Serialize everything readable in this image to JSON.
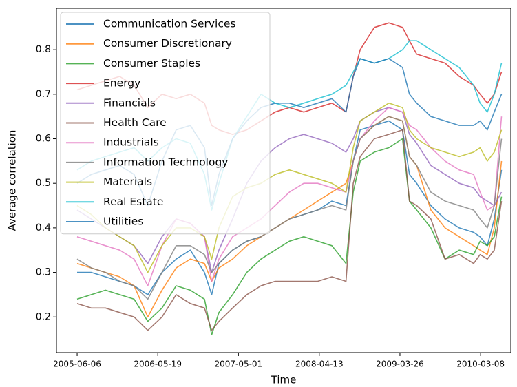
{
  "chart_data": {
    "type": "line",
    "xlabel": "Time",
    "ylabel": "Average correlation",
    "x": [
      "2005-06-06",
      "2005-08-06",
      "2005-10-06",
      "2005-12-06",
      "2006-02-06",
      "2006-04-06",
      "2006-06-06",
      "2006-08-06",
      "2006-10-06",
      "2006-12-06",
      "2007-01-06",
      "2007-02-06",
      "2007-04-06",
      "2007-06-06",
      "2007-08-06",
      "2007-10-06",
      "2007-12-06",
      "2008-02-06",
      "2008-04-06",
      "2008-06-06",
      "2008-08-06",
      "2008-09-06",
      "2008-10-06",
      "2008-12-06",
      "2009-02-06",
      "2009-04-06",
      "2009-05-06",
      "2009-06-06",
      "2009-08-06",
      "2009-10-06",
      "2009-12-06",
      "2010-02-06",
      "2010-03-06",
      "2010-04-06",
      "2010-05-06",
      "2010-06-06"
    ],
    "series": [
      {
        "name": "Communication Services",
        "color": "#1f77b4",
        "values": [
          0.3,
          0.3,
          0.29,
          0.28,
          0.27,
          0.25,
          0.3,
          0.33,
          0.35,
          0.3,
          0.25,
          0.32,
          0.35,
          0.37,
          0.38,
          0.4,
          0.42,
          0.43,
          0.44,
          0.46,
          0.45,
          0.55,
          0.62,
          0.63,
          0.64,
          0.62,
          0.52,
          0.5,
          0.45,
          0.42,
          0.4,
          0.39,
          0.38,
          0.36,
          0.42,
          0.53
        ]
      },
      {
        "name": "Consumer Discretionary",
        "color": "#ff7f0e",
        "values": [
          0.32,
          0.31,
          0.3,
          0.29,
          0.27,
          0.2,
          0.26,
          0.31,
          0.33,
          0.32,
          0.28,
          0.31,
          0.33,
          0.36,
          0.38,
          0.4,
          0.42,
          0.44,
          0.46,
          0.48,
          0.5,
          0.55,
          0.6,
          0.63,
          0.65,
          0.64,
          0.56,
          0.54,
          0.44,
          0.4,
          0.38,
          0.36,
          0.35,
          0.34,
          0.4,
          0.55
        ]
      },
      {
        "name": "Consumer Staples",
        "color": "#2ca02c",
        "values": [
          0.24,
          0.25,
          0.26,
          0.25,
          0.24,
          0.19,
          0.22,
          0.27,
          0.26,
          0.24,
          0.16,
          0.21,
          0.25,
          0.3,
          0.33,
          0.35,
          0.37,
          0.38,
          0.37,
          0.36,
          0.32,
          0.48,
          0.55,
          0.57,
          0.58,
          0.6,
          0.46,
          0.44,
          0.4,
          0.33,
          0.35,
          0.34,
          0.37,
          0.36,
          0.38,
          0.47
        ]
      },
      {
        "name": "Energy",
        "color": "#d62728",
        "values": [
          0.71,
          0.72,
          0.73,
          0.74,
          0.72,
          0.67,
          0.7,
          0.69,
          0.7,
          0.68,
          0.63,
          0.62,
          0.61,
          0.62,
          0.64,
          0.66,
          0.67,
          0.66,
          0.67,
          0.68,
          0.66,
          0.74,
          0.8,
          0.85,
          0.86,
          0.85,
          0.82,
          0.79,
          0.78,
          0.77,
          0.74,
          0.72,
          0.7,
          0.68,
          0.7,
          0.75
        ]
      },
      {
        "name": "Financials",
        "color": "#9467bd",
        "values": [
          0.44,
          0.42,
          0.4,
          0.38,
          0.36,
          0.32,
          0.38,
          0.42,
          0.41,
          0.38,
          0.3,
          0.35,
          0.42,
          0.5,
          0.55,
          0.58,
          0.6,
          0.61,
          0.6,
          0.59,
          0.57,
          0.6,
          0.64,
          0.66,
          0.67,
          0.66,
          0.61,
          0.59,
          0.54,
          0.52,
          0.5,
          0.49,
          0.47,
          0.46,
          0.45,
          0.48
        ]
      },
      {
        "name": "Health Care",
        "color": "#8c564b",
        "values": [
          0.23,
          0.22,
          0.22,
          0.21,
          0.2,
          0.17,
          0.2,
          0.25,
          0.23,
          0.22,
          0.17,
          0.19,
          0.22,
          0.25,
          0.27,
          0.28,
          0.28,
          0.28,
          0.28,
          0.29,
          0.28,
          0.5,
          0.56,
          0.6,
          0.61,
          0.62,
          0.46,
          0.45,
          0.42,
          0.33,
          0.34,
          0.32,
          0.34,
          0.33,
          0.35,
          0.46
        ]
      },
      {
        "name": "Industrials",
        "color": "#e377c2",
        "values": [
          0.38,
          0.37,
          0.36,
          0.35,
          0.33,
          0.27,
          0.36,
          0.42,
          0.41,
          0.38,
          0.28,
          0.33,
          0.38,
          0.4,
          0.42,
          0.45,
          0.48,
          0.5,
          0.5,
          0.49,
          0.48,
          0.55,
          0.6,
          0.64,
          0.67,
          0.66,
          0.63,
          0.62,
          0.58,
          0.55,
          0.53,
          0.52,
          0.48,
          0.44,
          0.45,
          0.65
        ]
      },
      {
        "name": "Information Technology",
        "color": "#7f7f7f",
        "values": [
          0.33,
          0.31,
          0.3,
          0.28,
          0.27,
          0.24,
          0.3,
          0.36,
          0.36,
          0.34,
          0.3,
          0.32,
          0.35,
          0.37,
          0.38,
          0.4,
          0.42,
          0.43,
          0.44,
          0.45,
          0.44,
          0.55,
          0.6,
          0.63,
          0.65,
          0.64,
          0.56,
          0.54,
          0.48,
          0.46,
          0.45,
          0.44,
          0.42,
          0.4,
          0.45,
          0.6
        ]
      },
      {
        "name": "Materials",
        "color": "#bcbd22",
        "values": [
          0.45,
          0.43,
          0.4,
          0.38,
          0.36,
          0.3,
          0.36,
          0.4,
          0.4,
          0.38,
          0.33,
          0.4,
          0.47,
          0.49,
          0.5,
          0.52,
          0.53,
          0.52,
          0.51,
          0.5,
          0.48,
          0.58,
          0.64,
          0.66,
          0.68,
          0.67,
          0.62,
          0.6,
          0.58,
          0.57,
          0.56,
          0.57,
          0.58,
          0.55,
          0.57,
          0.62
        ]
      },
      {
        "name": "Real Estate",
        "color": "#17becf",
        "values": [
          0.53,
          0.55,
          0.56,
          0.57,
          0.58,
          0.55,
          0.58,
          0.6,
          0.59,
          0.52,
          0.44,
          0.5,
          0.6,
          0.65,
          0.7,
          0.68,
          0.67,
          0.68,
          0.69,
          0.7,
          0.72,
          0.75,
          0.78,
          0.77,
          0.78,
          0.8,
          0.82,
          0.82,
          0.8,
          0.78,
          0.76,
          0.72,
          0.68,
          0.66,
          0.7,
          0.77
        ]
      },
      {
        "name": "Utilities",
        "color": "#1f77b4",
        "values": [
          0.5,
          0.52,
          0.53,
          0.54,
          0.52,
          0.45,
          0.55,
          0.62,
          0.63,
          0.58,
          0.45,
          0.52,
          0.6,
          0.64,
          0.67,
          0.68,
          0.68,
          0.67,
          0.68,
          0.69,
          0.66,
          0.74,
          0.78,
          0.77,
          0.78,
          0.76,
          0.7,
          0.68,
          0.65,
          0.64,
          0.63,
          0.63,
          0.64,
          0.62,
          0.66,
          0.7
        ]
      }
    ],
    "xlim": [
      "2005-03-09",
      "2010-07-16"
    ],
    "xticks": [
      "2005-06-06",
      "2006-05-19",
      "2007-05-01",
      "2008-04-13",
      "2009-03-26",
      "2010-03-08"
    ],
    "ylim": [
      0.12,
      0.893
    ],
    "yticks": [
      0.2,
      0.3,
      0.4,
      0.5,
      0.6,
      0.7,
      0.8
    ],
    "grid": false,
    "legend": "upper left"
  }
}
